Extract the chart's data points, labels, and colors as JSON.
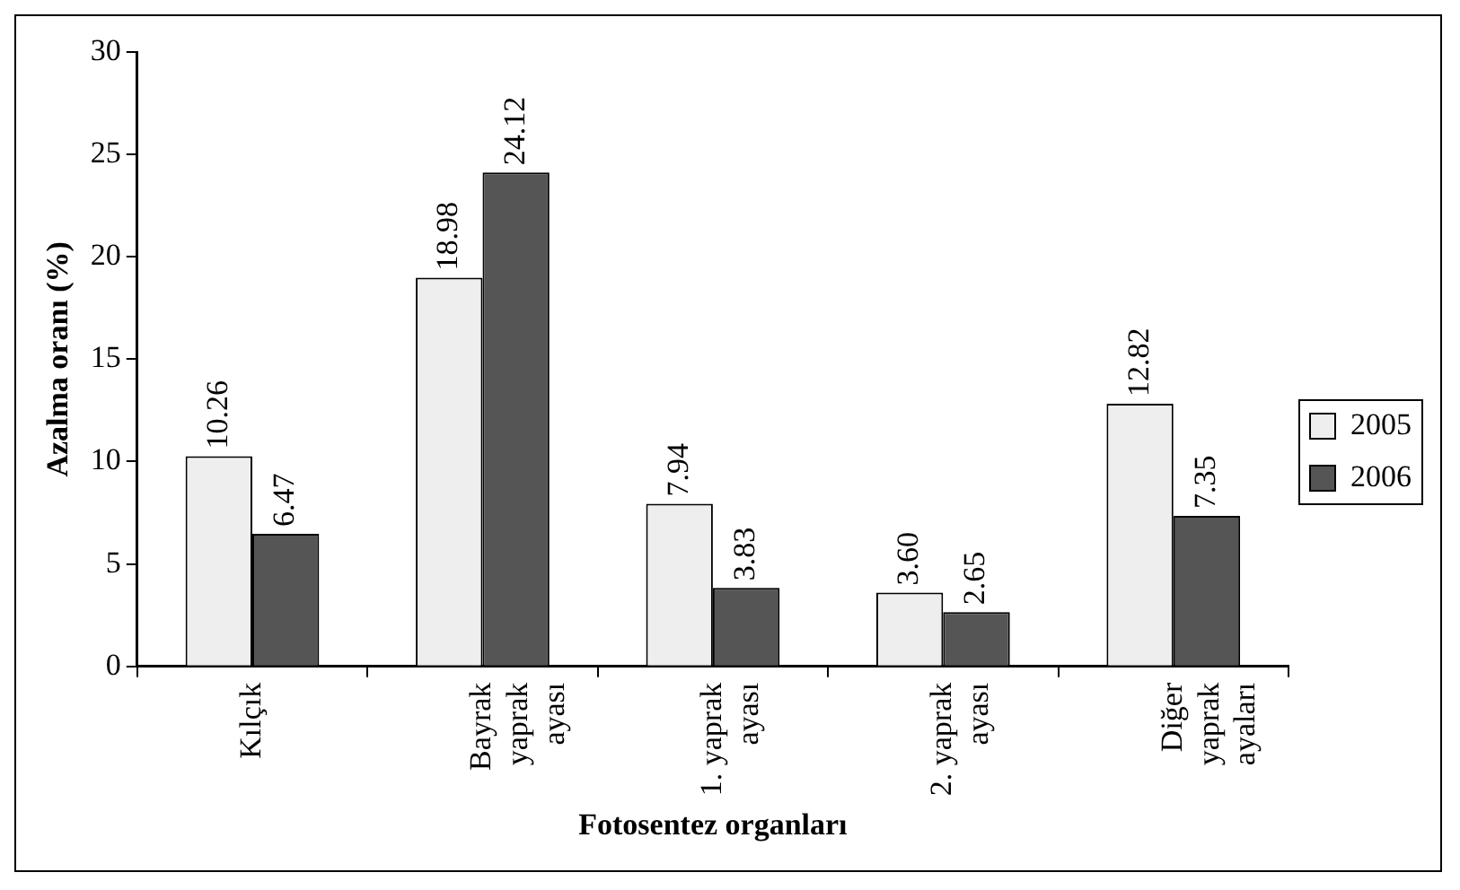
{
  "chart_data": {
    "type": "bar",
    "xlabel": "Fotosentez organları",
    "ylabel": "Azalma oranı (%)",
    "categories": [
      "Kılçık",
      "Bayrak yaprak ayası",
      "1. yaprak ayası",
      "2. yaprak ayası",
      "Diğer yaprak ayaları"
    ],
    "series": [
      {
        "name": "2005",
        "color": "#eeeeee",
        "values": [
          10.26,
          18.98,
          7.94,
          3.6,
          12.82
        ],
        "value_labels": [
          "10.26",
          "18.98",
          "7.94",
          "3.60",
          "12.82"
        ]
      },
      {
        "name": "2006",
        "color": "#555555",
        "values": [
          6.47,
          24.12,
          3.83,
          2.65,
          7.35
        ],
        "value_labels": [
          "6.47",
          "24.12",
          "3.83",
          "2.65",
          "7.35"
        ]
      }
    ],
    "ylim": [
      0,
      30
    ],
    "yticks": [
      0,
      5,
      10,
      15,
      20,
      25,
      30
    ],
    "grid": false,
    "legend": "right"
  }
}
